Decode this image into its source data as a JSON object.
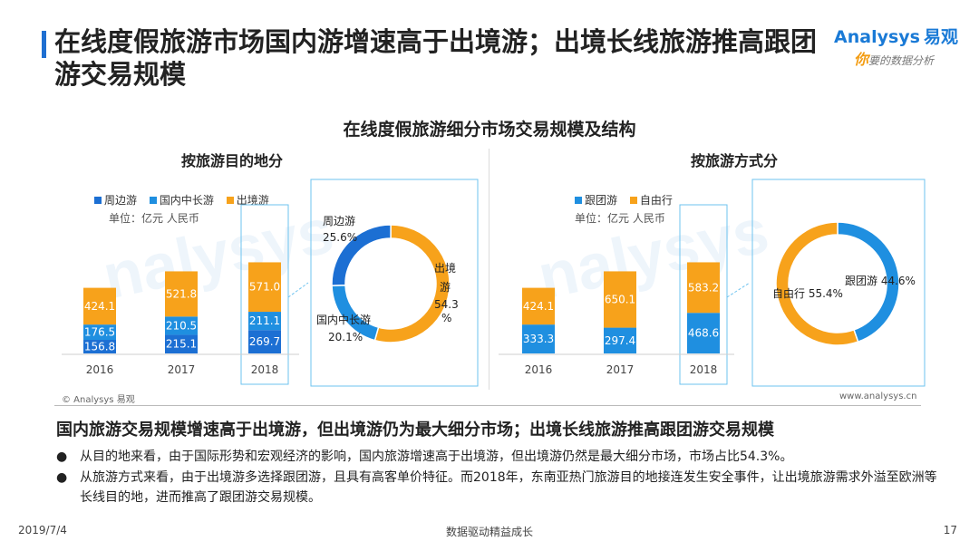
{
  "page": {
    "title": "在线度假旅游市场国内游增速高于出境游；出境长线旅游推高跟团游交易规模",
    "logo_main": "nalysys",
    "logo_main_prefix": "A",
    "logo_cn": "易观",
    "logo_sub_first": "你",
    "logo_sub_rest": "要的数据分析"
  },
  "chart_data": [
    {
      "type": "bar",
      "stacked": true,
      "title": "在线度假旅游细分市场交易规模及结构",
      "subtitle": "按旅游目的地分",
      "unit": "单位：亿元 人民币",
      "categories": [
        "2016",
        "2017",
        "2018"
      ],
      "series": [
        {
          "name": "周边游",
          "color": "#1c6fd3",
          "values": [
            156.8,
            215.1,
            269.7
          ]
        },
        {
          "name": "国内中长游",
          "color": "#1f8fe0",
          "values": [
            176.5,
            210.5,
            211.1
          ]
        },
        {
          "name": "出境游",
          "color": "#f7a21b",
          "values": [
            424.1,
            521.8,
            571.0
          ]
        }
      ],
      "highlight_category": "2018"
    },
    {
      "type": "pie",
      "donut": true,
      "subtitle": "2018",
      "slices": [
        {
          "name": "周边游",
          "value": 25.6,
          "label": "25.6%",
          "color": "#1c6fd3"
        },
        {
          "name": "出境游",
          "value": 54.3,
          "label": "54.3%",
          "color": "#f7a21b"
        },
        {
          "name": "国内中长游",
          "value": 20.1,
          "label": "20.1%",
          "color": "#1f8fe0"
        }
      ]
    },
    {
      "type": "bar",
      "stacked": true,
      "subtitle": "按旅游方式分",
      "unit": "单位：亿元 人民币",
      "categories": [
        "2016",
        "2017",
        "2018"
      ],
      "series": [
        {
          "name": "跟团游",
          "color": "#1f8fe0",
          "values": [
            333.3,
            297.4,
            468.6
          ]
        },
        {
          "name": "自由行",
          "color": "#f7a21b",
          "values": [
            424.1,
            650.1,
            583.2
          ]
        }
      ],
      "highlight_category": "2018"
    },
    {
      "type": "pie",
      "donut": true,
      "subtitle": "2018",
      "slices": [
        {
          "name": "跟团游",
          "value": 44.6,
          "label": "跟团游 44.6%",
          "color": "#1f8fe0"
        },
        {
          "name": "自由行",
          "value": 55.4,
          "label": "自由行 55.4%",
          "color": "#f7a21b"
        }
      ]
    }
  ],
  "labels": {
    "main_chart_title": "在线度假旅游细分市场交易规模及结构",
    "left_panel_title": "按旅游目的地分",
    "right_panel_title": "按旅游方式分",
    "left_unit": "单位：亿元 人民币",
    "right_unit": "单位：亿元 人民币",
    "donut1_zby_name": "周边游",
    "donut1_zby_pct": "25.6%",
    "donut1_cjy_name_1": "出境",
    "donut1_cjy_name_2": "游",
    "donut1_cjy_pct_1": "54.3",
    "donut1_cjy_pct_2": "%",
    "donut1_gn_name": "国内中长游",
    "donut1_gn_pct": "20.1%",
    "donut2_gty": "跟团游 44.6%",
    "donut2_zyx": "自由行 55.4%"
  },
  "footer": {
    "source": "© Analysys 易观",
    "website": "www.analysys.cn",
    "date": "2019/7/4",
    "center": "数据驱动精益成长",
    "page_number": "17"
  },
  "summary": {
    "title": "国内旅游交易规模增速高于出境游，但出境游仍为最大细分市场；出境长线旅游推高跟团游交易规模",
    "bullets": [
      "从目的地来看，由于国际形势和宏观经济的影响，国内旅游增速高于出境游，但出境游仍然是最大细分市场，市场占比54.3%。",
      "从旅游方式来看，由于出境游多选择跟团游，且具有高客单价特征。而2018年，东南亚热门旅游目的地接连发生安全事件，让出境旅游需求外溢至欧洲等长线目的地，进而推高了跟团游交易规模。"
    ],
    "bullet_symbol": "●"
  }
}
